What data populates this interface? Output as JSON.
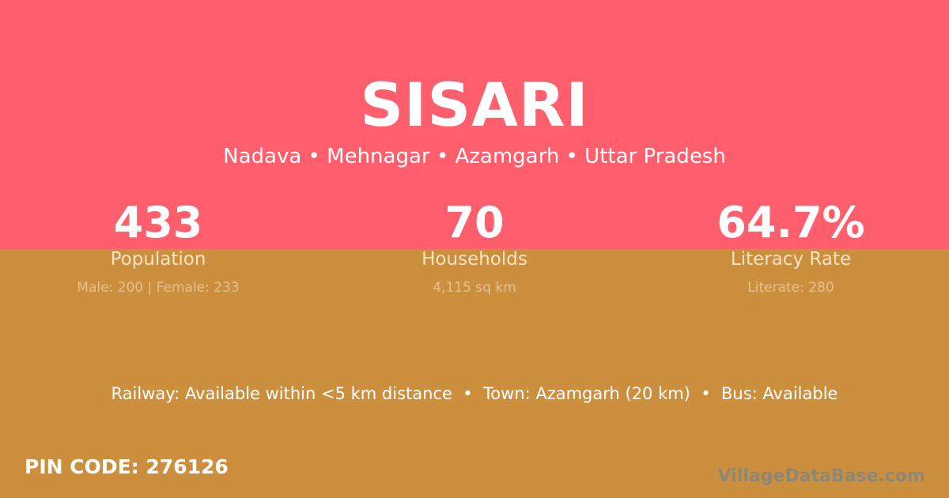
{
  "colors": {
    "top_bg": "#FF5F6D",
    "bottom_bg": "#CC8F3E"
  },
  "village": "SISARI",
  "location": "Nadava • Mehnagar • Azamgarh • Uttar Pradesh",
  "stats": [
    {
      "value": "433",
      "label": "Population",
      "detail": "Male: 200 | Female: 233"
    },
    {
      "value": "70",
      "label": "Households",
      "detail": "4,115 sq km"
    },
    {
      "value": "64.7%",
      "label": "Literacy Rate",
      "detail": "Literate: 280"
    }
  ],
  "connectivity": "Railway: Available within <5 km distance  •  Town: Azamgarh (20 km)  •  Bus: Available",
  "pin_code": "PIN CODE: 276126",
  "watermark": "VillageDataBase.com"
}
